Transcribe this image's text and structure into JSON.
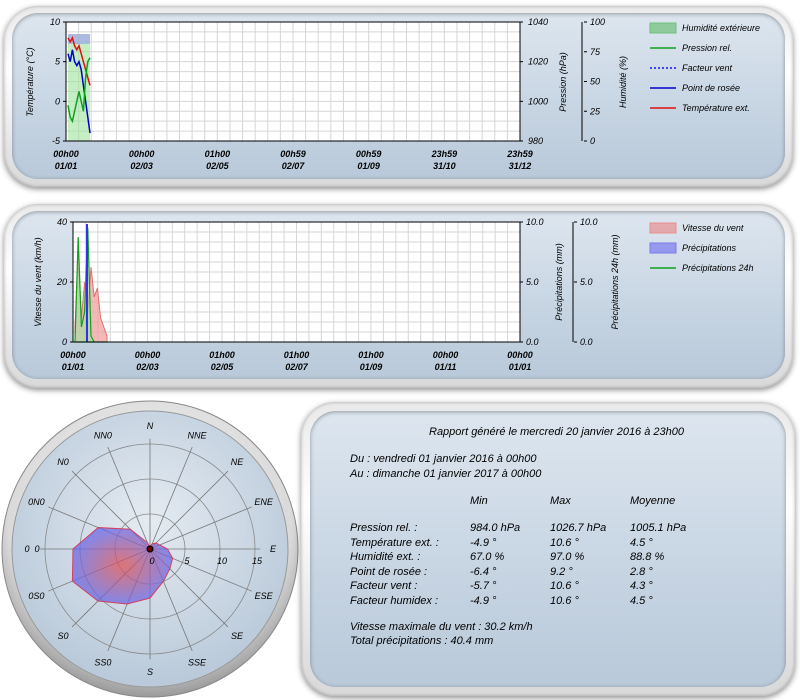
{
  "chart1": {
    "left_axis_label": "Température (°C)",
    "right_axis1_label": "Pression (hPa)",
    "right_axis2_label": "Humidité (%)",
    "left_ticks": [
      "10",
      "5",
      "0",
      "-5"
    ],
    "right1_ticks": [
      "1040",
      "1020",
      "1000",
      "980"
    ],
    "right2_ticks": [
      "100",
      "75",
      "50",
      "25",
      "0"
    ],
    "x_ticks": [
      {
        "time": "00h00",
        "date": "01/01"
      },
      {
        "time": "00h00",
        "date": "02/03"
      },
      {
        "time": "01h00",
        "date": "02/05"
      },
      {
        "time": "00h59",
        "date": "02/07"
      },
      {
        "time": "00h59",
        "date": "01/09"
      },
      {
        "time": "23h59",
        "date": "31/10"
      },
      {
        "time": "23h59",
        "date": "31/12"
      }
    ],
    "legend": [
      {
        "label": "Humidité extérieure",
        "color": "#6fbf7a",
        "style": "area"
      },
      {
        "label": "Pression rel.",
        "color": "#10a020",
        "style": "line"
      },
      {
        "label": "Facteur vent",
        "color": "#1010ff",
        "style": "dotted"
      },
      {
        "label": "Point de rosée",
        "color": "#0000cc",
        "style": "line"
      },
      {
        "label": "Température ext.",
        "color": "#e01010",
        "style": "line"
      }
    ]
  },
  "chart2": {
    "left_axis_label": "Vitesse du vent (km/h)",
    "right_axis1_label": "Précipitations (mm)",
    "right_axis2_label": "Précipitations 24h (mm)",
    "left_ticks": [
      "40",
      "20",
      "0"
    ],
    "right1_ticks": [
      "10.0",
      "5.0",
      "0.0"
    ],
    "right2_ticks": [
      "10.0",
      "5.0",
      "0.0"
    ],
    "x_ticks": [
      {
        "time": "00h00",
        "date": "01/01"
      },
      {
        "time": "00h00",
        "date": "02/03"
      },
      {
        "time": "01h00",
        "date": "02/05"
      },
      {
        "time": "01h00",
        "date": "02/07"
      },
      {
        "time": "01h00",
        "date": "01/09"
      },
      {
        "time": "00h00",
        "date": "01/11"
      },
      {
        "time": "00h00",
        "date": "01/01"
      }
    ],
    "legend": [
      {
        "label": "Vitesse du vent",
        "color": "#e89090",
        "style": "area"
      },
      {
        "label": "Précipitations",
        "color": "#7a7aee",
        "style": "area"
      },
      {
        "label": "Précipitations 24h",
        "color": "#10a020",
        "style": "line"
      }
    ]
  },
  "chart_data": [
    {
      "type": "line",
      "ylim": [
        -5,
        10
      ],
      "y2lim": [
        980,
        1040
      ],
      "y3lim": [
        0,
        100
      ],
      "series": [
        {
          "name": "Température ext.",
          "values": [
            8,
            7.5,
            8,
            7,
            6.5,
            7,
            6,
            5,
            4,
            3,
            2
          ]
        },
        {
          "name": "Point de rosée",
          "values": [
            6,
            5,
            6.5,
            5,
            4.5,
            5,
            4,
            2,
            0,
            -2,
            -4
          ]
        },
        {
          "name": "Pression rel.",
          "values": [
            998,
            992,
            990,
            995,
            1000,
            1005,
            1000,
            995,
            1012,
            1020,
            1022
          ]
        }
      ]
    },
    {
      "type": "area",
      "ylim": [
        0,
        40
      ],
      "series": [
        {
          "name": "Vitesse du vent",
          "values": [
            5,
            30,
            8,
            20,
            10,
            25,
            15,
            18,
            8,
            5,
            2
          ]
        },
        {
          "name": "Précipitations 24h",
          "values": [
            0,
            35,
            5,
            10,
            38,
            2,
            0,
            0,
            0,
            0,
            0
          ]
        }
      ]
    },
    {
      "type": "radar",
      "directions": [
        "N",
        "NNE",
        "NE",
        "ENE",
        "E",
        "ESE",
        "SE",
        "SSE",
        "S",
        "SSO",
        "SO",
        "OSO",
        "O",
        "ONO",
        "NO",
        "NNO"
      ],
      "scale_ticks": [
        "0",
        "5",
        "10",
        "15"
      ],
      "rmax": 15
    }
  ],
  "rose": {
    "dir_labels": [
      "N",
      "NNE",
      "NE",
      "ENE",
      "E",
      "ESE",
      "SE",
      "SSE",
      "S",
      "SS0",
      "S0",
      "0S0",
      "0",
      "0N0",
      "N0",
      "NN0"
    ],
    "scale_labels": [
      "0",
      "5",
      "10",
      "15"
    ]
  },
  "report": {
    "title": "Rapport généré le mercredi 20 janvier 2016 à 23h00",
    "from": "Du : vendredi 01 janvier 2016 à 00h00",
    "to": "Au : dimanche 01 janvier 2017 à 00h00",
    "headers": [
      "Min",
      "Max",
      "Moyenne"
    ],
    "rows": [
      {
        "label": "Pression rel. :",
        "min": "984.0 hPa",
        "max": "1026.7 hPa",
        "avg": "1005.1 hPa"
      },
      {
        "label": "Température ext. :",
        "min": "-4.9 °",
        "max": "10.6 °",
        "avg": "4.5 °"
      },
      {
        "label": "Humidité ext. :",
        "min": "67.0 %",
        "max": "97.0 %",
        "avg": "88.8 %"
      },
      {
        "label": "Point de rosée :",
        "min": "-6.4 °",
        "max": "9.2 °",
        "avg": "2.8 °"
      },
      {
        "label": "Facteur vent :",
        "min": "-5.7 °",
        "max": "10.6 °",
        "avg": "4.3 °"
      },
      {
        "label": "Facteur humidex :",
        "min": "-4.9 °",
        "max": "10.6 °",
        "avg": "4.5 °"
      }
    ],
    "max_wind": "Vitesse maximale du vent : 30.2 km/h",
    "total_rain": "Total précipitations : 40.4 mm"
  }
}
